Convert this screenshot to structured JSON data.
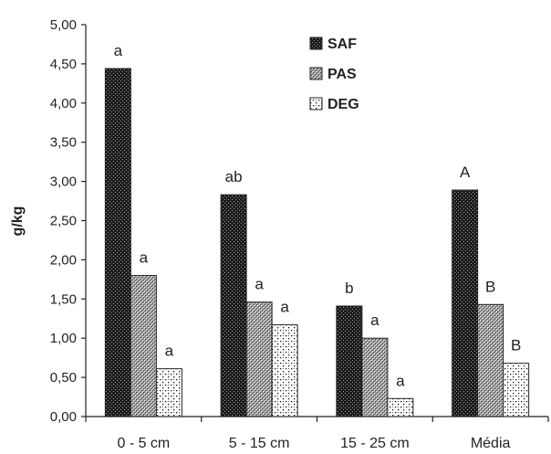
{
  "chart_data": {
    "type": "bar",
    "ylabel": "g/kg",
    "xlabel": "",
    "title": "",
    "ylim": [
      0,
      5
    ],
    "ytick_step": 0.5,
    "ytick_labels": [
      "0,00",
      "0,50",
      "1,00",
      "1,50",
      "2,00",
      "2,50",
      "3,00",
      "3,50",
      "4,00",
      "4,50",
      "5,00"
    ],
    "categories": [
      "0 - 5 cm",
      "5 - 15 cm",
      "15 - 25 cm",
      "Média"
    ],
    "series": [
      {
        "name": "SAF",
        "values": [
          4.44,
          2.83,
          1.41,
          2.89
        ],
        "labels": [
          "a",
          "ab",
          "b",
          "A"
        ],
        "pattern": "dense-dark"
      },
      {
        "name": "PAS",
        "values": [
          1.8,
          1.46,
          1.0,
          1.43
        ],
        "labels": [
          "a",
          "a",
          "a",
          "B"
        ],
        "pattern": "medium-gray"
      },
      {
        "name": "DEG",
        "values": [
          0.61,
          1.17,
          0.23,
          0.68
        ],
        "labels": [
          "a",
          "a",
          "a",
          "B"
        ],
        "pattern": "sparse-dots"
      }
    ],
    "legend_position": "top-right",
    "grid": false
  }
}
